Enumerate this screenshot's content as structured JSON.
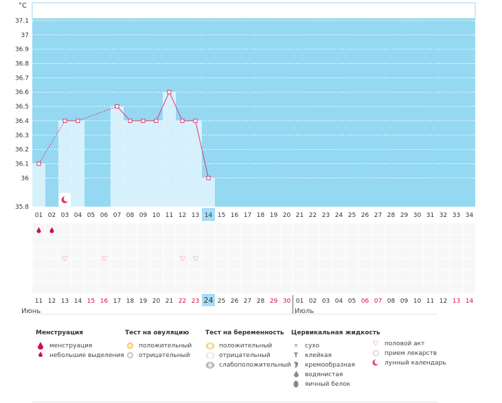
{
  "chart_data": {
    "type": "bar",
    "ylabel": "°C",
    "ylim": [
      35.8,
      37.2
    ],
    "yticks": [
      "35.8",
      "36",
      "36.1",
      "36.2",
      "36.3",
      "36.4",
      "36.5",
      "36.6",
      "36.7",
      "36.8",
      "36.9",
      "37",
      "37.1"
    ],
    "cycle_days": [
      "01",
      "02",
      "03",
      "04",
      "05",
      "06",
      "07",
      "08",
      "09",
      "10",
      "11",
      "12",
      "13",
      "14",
      "15",
      "16",
      "17",
      "18",
      "19",
      "20",
      "21",
      "22",
      "23",
      "24",
      "25",
      "26",
      "27",
      "28",
      "29",
      "30",
      "31",
      "32",
      "33",
      "34"
    ],
    "dates": [
      "11",
      "12",
      "13",
      "14",
      "15",
      "16",
      "17",
      "18",
      "19",
      "20",
      "21",
      "22",
      "23",
      "24",
      "25",
      "26",
      "27",
      "28",
      "29",
      "30",
      "01",
      "02",
      "03",
      "04",
      "05",
      "06",
      "07",
      "08",
      "09",
      "10",
      "11",
      "12",
      "13",
      "14"
    ],
    "red_dates_idx": [
      4,
      5,
      11,
      12,
      18,
      19,
      25,
      26,
      32,
      33
    ],
    "today_idx": 13,
    "values": [
      36.1,
      null,
      36.4,
      36.4,
      null,
      null,
      36.5,
      36.4,
      36.4,
      36.4,
      36.6,
      36.4,
      36.4,
      36.0,
      null,
      null,
      null,
      null,
      null,
      null,
      null,
      null,
      null,
      null,
      null,
      null,
      null,
      null,
      null,
      null,
      null,
      null,
      null,
      null
    ],
    "months": [
      {
        "label": "Июнь",
        "start_idx": 0
      },
      {
        "label": "Июль",
        "start_idx": 20
      }
    ],
    "colors": {
      "plot_bg": "#94d8f2",
      "bar": "#d6f0fc",
      "line": "#e0356c",
      "today": "#a6ddf5",
      "red": "#d0104c"
    }
  },
  "markers": {
    "menstruation_idx": [
      0,
      1
    ],
    "intercourse_idx": [
      2,
      5,
      11,
      12
    ],
    "moon_idx": [
      2
    ]
  },
  "legend": {
    "menstruation": {
      "title": "Менструация",
      "items": [
        {
          "icon": "drop-icon",
          "label": "менструация"
        },
        {
          "icon": "small-drop-icon",
          "label": "небольшие выделения"
        }
      ]
    },
    "ovulation": {
      "title": "Тест на овуляцию",
      "items": [
        {
          "icon": "positive-dot-icon",
          "label": "положительный"
        },
        {
          "icon": "negative-dot-icon",
          "label": "отрицательный"
        }
      ]
    },
    "pregnancy": {
      "title": "Тест на беременность",
      "items": [
        {
          "icon": "pregnancy-positive-icon",
          "label": "положительный"
        },
        {
          "icon": "pregnancy-negative-icon",
          "label": "отрицательный"
        },
        {
          "icon": "pregnancy-weak-icon",
          "label": "слабоположительный"
        }
      ]
    },
    "cervical": {
      "title": "Цервикальная жидкость",
      "items": [
        {
          "icon": "cross-icon",
          "label": "сухо"
        },
        {
          "icon": "sticky-icon",
          "label": "клейкая"
        },
        {
          "icon": "creamy-icon",
          "label": "кремообразная"
        },
        {
          "icon": "watery-icon",
          "label": "водянистая"
        },
        {
          "icon": "egg-white-icon",
          "label": "яичный белок"
        }
      ]
    },
    "other": {
      "items": [
        {
          "icon": "heart-icon",
          "label": "половой акт"
        },
        {
          "icon": "pill-icon",
          "label": "прием лекарств"
        },
        {
          "icon": "moon-icon",
          "label": "лунный календарь"
        }
      ]
    }
  }
}
